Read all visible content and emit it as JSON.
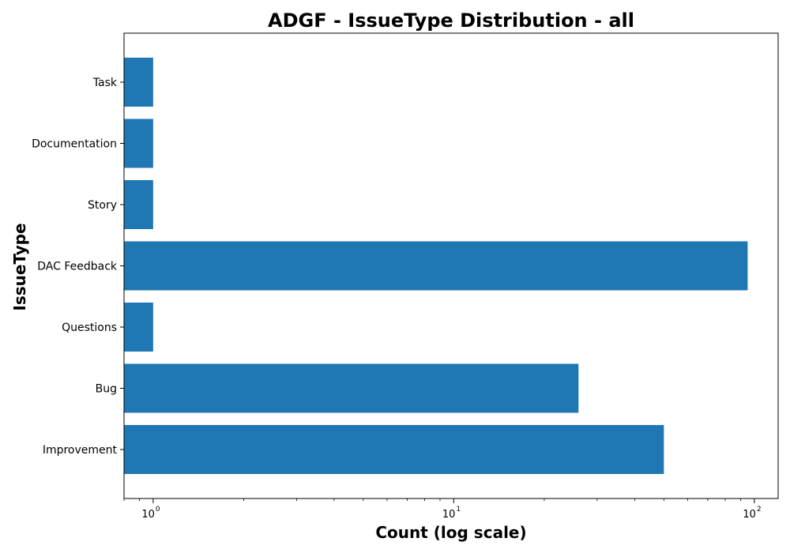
{
  "chart_data": {
    "type": "bar",
    "orientation": "horizontal",
    "title": "ADGF - IssueType Distribution - all",
    "xlabel": "Count (log scale)",
    "ylabel": "IssueType",
    "x_scale": "log",
    "xlim": [
      0.8,
      120
    ],
    "x_ticks": [
      {
        "value": 1,
        "base": "10",
        "exp": "0"
      },
      {
        "value": 10,
        "base": "10",
        "exp": "1"
      },
      {
        "value": 100,
        "base": "10",
        "exp": "2"
      }
    ],
    "categories": [
      "Improvement",
      "Bug",
      "Questions",
      "DAC Feedback",
      "Story",
      "Documentation",
      "Task"
    ],
    "values": [
      50,
      26,
      1,
      95,
      1,
      1,
      1
    ],
    "bar_color": "#1f77b4",
    "grid": false,
    "legend": "none"
  }
}
